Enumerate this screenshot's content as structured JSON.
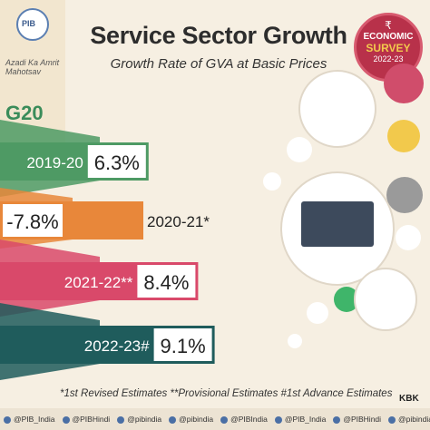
{
  "header": {
    "title": "Service Sector Growth",
    "subtitle": "Growth Rate of GVA at Basic Prices"
  },
  "logos": {
    "pib_text": "PIB",
    "azadi_text": "Azadi Ka Amrit Mahotsav",
    "g20_text": "G20"
  },
  "badge": {
    "symbol": "₹",
    "line1": "ECONOMIC",
    "line2": "SURVEY",
    "line3": "2022-23"
  },
  "colors": {
    "green": "#4e9a64",
    "orange": "#e8873a",
    "pink": "#d9496a",
    "teal": "#1f5c5c"
  },
  "chart_data": {
    "type": "bar",
    "title": "Service Sector Growth",
    "subtitle": "Growth Rate of GVA at Basic Prices",
    "categories": [
      "2019-20",
      "2020-21*",
      "2021-22**",
      "2022-23#"
    ],
    "values": [
      6.3,
      -7.8,
      8.4,
      9.1
    ],
    "value_labels": [
      "6.3%",
      "-7.8%",
      "8.4%",
      "9.1%"
    ],
    "unit": "%",
    "orientation": "horizontal",
    "bar_colors": [
      "#4e9a64",
      "#e8873a",
      "#d9496a",
      "#1f5c5c"
    ]
  },
  "footnote": "*1st Revised Estimates **Provisional Estimates  #1st Advance Estimates",
  "credit": "KBK",
  "social": [
    "@PIB_India",
    "@PIBHindi",
    "@pibindia",
    "@pibindia",
    "@PIBIndia",
    "@PIB_India",
    "@PIBHindi",
    "@pibindia",
    "@PIBHindi",
    "@pibindia"
  ]
}
